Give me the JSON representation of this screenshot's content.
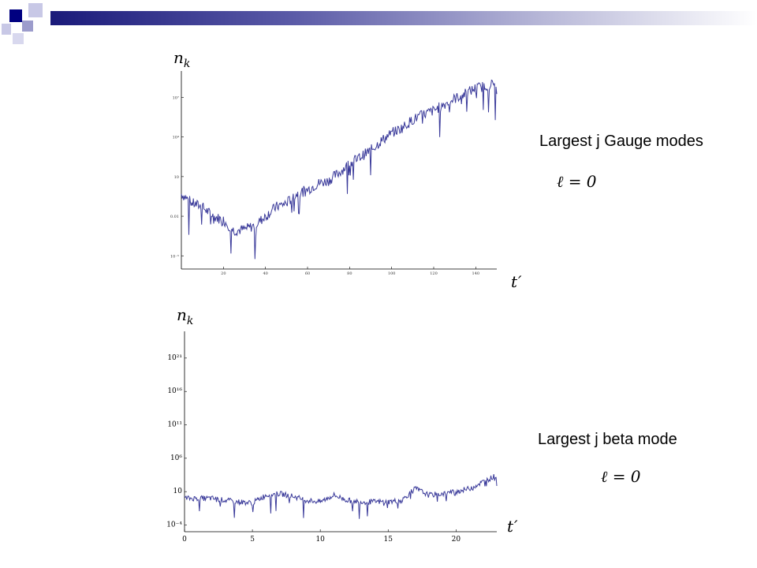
{
  "slide": {
    "accent_color": "#000080",
    "secondary_color": "#9999cc",
    "bar_gradient": [
      "#1a1a7a",
      "#ffffff"
    ]
  },
  "annotations": {
    "top_label": "Largest j Gauge modes",
    "top_ell": "ℓ = 0",
    "bottom_label": "Largest j beta mode",
    "bottom_ell": "ℓ = 0"
  },
  "chart_data": [
    {
      "type": "line",
      "ylabel": "n_k",
      "ylabel_display": "nk",
      "xlabel": "t′",
      "series_color": "#3a3a9a",
      "x_ticks": [
        20,
        40,
        60,
        80,
        100,
        120,
        140
      ],
      "xlim": [
        0,
        150
      ],
      "y_scale": "log",
      "y_ticks": [
        "10⁻⁵",
        "0.01",
        "10",
        "10⁴",
        "10⁷"
      ],
      "y_tick_values": [
        1e-05,
        0.01,
        10,
        10000,
        10000000
      ],
      "ylim": [
        1e-06,
        1000000000
      ],
      "series": [
        {
          "values": [
            {
              "x": 0,
              "y": 0.5
            },
            {
              "x": 5,
              "y": 0.1
            },
            {
              "x": 10,
              "y": 0.05
            },
            {
              "x": 15,
              "y": 0.01
            },
            {
              "x": 20,
              "y": 0.005
            },
            {
              "x": 25,
              "y": 0.0008
            },
            {
              "x": 30,
              "y": 0.001
            },
            {
              "x": 35,
              "y": 0.002
            },
            {
              "x": 40,
              "y": 0.01
            },
            {
              "x": 45,
              "y": 0.05
            },
            {
              "x": 50,
              "y": 0.1
            },
            {
              "x": 55,
              "y": 0.5
            },
            {
              "x": 60,
              "y": 1
            },
            {
              "x": 65,
              "y": 3
            },
            {
              "x": 70,
              "y": 5
            },
            {
              "x": 75,
              "y": 20
            },
            {
              "x": 80,
              "y": 100
            },
            {
              "x": 85,
              "y": 300
            },
            {
              "x": 90,
              "y": 1000
            },
            {
              "x": 95,
              "y": 5000
            },
            {
              "x": 100,
              "y": 20000
            },
            {
              "x": 105,
              "y": 50000
            },
            {
              "x": 110,
              "y": 200000
            },
            {
              "x": 115,
              "y": 500000
            },
            {
              "x": 120,
              "y": 1000000
            },
            {
              "x": 125,
              "y": 3000000
            },
            {
              "x": 130,
              "y": 8000000
            },
            {
              "x": 135,
              "y": 20000000
            },
            {
              "x": 140,
              "y": 50000000
            },
            {
              "x": 148,
              "y": 100000000
            }
          ]
        }
      ]
    },
    {
      "type": "line",
      "ylabel": "n_k",
      "ylabel_display": "nk",
      "xlabel": "t′",
      "series_color": "#3a3a9a",
      "x_ticks": [
        0,
        5,
        10,
        15,
        20
      ],
      "xlim": [
        0,
        23
      ],
      "y_scale": "log",
      "y_ticks": [
        "10⁻⁴",
        "10",
        "10⁶",
        "10¹¹",
        "10¹⁶",
        "10²¹"
      ],
      "y_tick_values": [
        0.0001,
        10,
        1000000,
        100000000000,
        10000000000000000,
        1e+21
      ],
      "ylim": [
        1e-05,
        1e+25
      ],
      "series": [
        {
          "values": [
            {
              "x": 0,
              "y": 1
            },
            {
              "x": 2,
              "y": 1
            },
            {
              "x": 3,
              "y": 0.5
            },
            {
              "x": 4,
              "y": 0.3
            },
            {
              "x": 5,
              "y": 0.2
            },
            {
              "x": 6,
              "y": 3
            },
            {
              "x": 7,
              "y": 5
            },
            {
              "x": 8,
              "y": 2
            },
            {
              "x": 9,
              "y": 0.5
            },
            {
              "x": 10,
              "y": 0.3
            },
            {
              "x": 11,
              "y": 3
            },
            {
              "x": 12,
              "y": 0.5
            },
            {
              "x": 13,
              "y": 0.3
            },
            {
              "x": 14,
              "y": 0.3
            },
            {
              "x": 15,
              "y": 0.3
            },
            {
              "x": 16,
              "y": 0.5
            },
            {
              "x": 17,
              "y": 30
            },
            {
              "x": 18,
              "y": 3
            },
            {
              "x": 19,
              "y": 5
            },
            {
              "x": 20,
              "y": 10
            },
            {
              "x": 21,
              "y": 30
            },
            {
              "x": 22,
              "y": 300
            },
            {
              "x": 23,
              "y": 3000
            }
          ]
        }
      ]
    }
  ]
}
